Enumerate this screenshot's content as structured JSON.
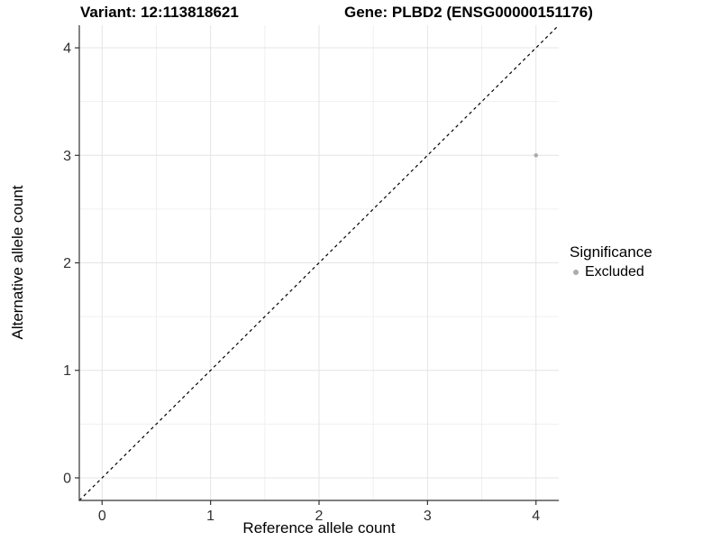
{
  "chart_data": {
    "type": "scatter",
    "title_variant": "Variant: 12:113818621",
    "title_gene": "Gene: PLBD2 (ENSG00000151176)",
    "xlabel": "Reference allele count",
    "ylabel": "Alternative allele count",
    "xticks": [
      0,
      1,
      2,
      3,
      4
    ],
    "yticks": [
      0,
      1,
      2,
      3,
      4
    ],
    "xlim": [
      -0.21,
      4.21
    ],
    "ylim": [
      -0.21,
      4.21
    ],
    "grid": {
      "major": true,
      "minor": true
    },
    "points": [
      {
        "x": 4,
        "y": 3,
        "series": "Excluded"
      }
    ],
    "reference_line": {
      "type": "identity",
      "equation": "y = x",
      "style": "dashed",
      "color": "#000000"
    },
    "legend": {
      "title": "Significance",
      "position": "right",
      "entries": [
        {
          "label": "Excluded",
          "color": "#ABABAB",
          "marker": "circle"
        }
      ]
    },
    "colors": {
      "point": "#ABABAB",
      "grid_major": "#E4E4E4",
      "grid_minor": "#F0F0F0",
      "axis": "#333333",
      "tick_text": "#303030"
    }
  }
}
